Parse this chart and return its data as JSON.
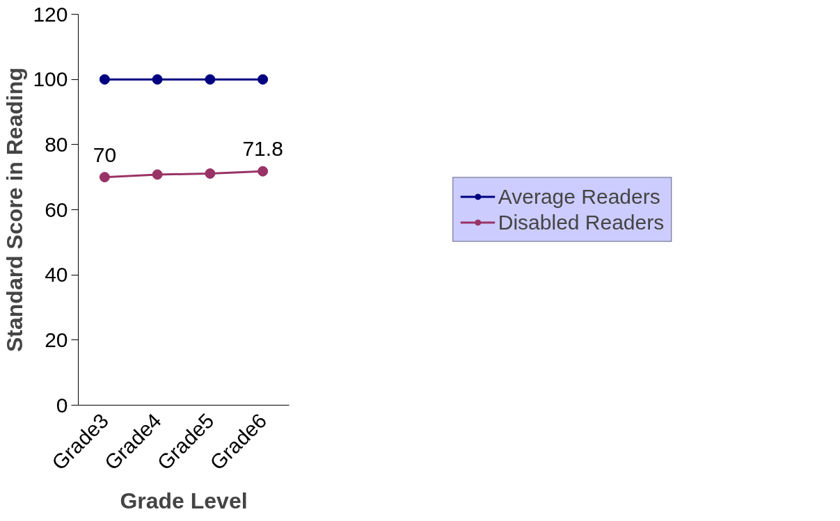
{
  "chart_data": {
    "type": "line",
    "xlabel": "Grade Level",
    "ylabel": "Standard Score in Reading",
    "categories": [
      "Grade3",
      "Grade4",
      "Grade5",
      "Grade6"
    ],
    "series": [
      {
        "name": "Average Readers",
        "color": "#000080",
        "values": [
          100,
          100,
          100,
          100
        ]
      },
      {
        "name": "Disabled Readers",
        "color": "#993366",
        "values": [
          70,
          70.8,
          71.1,
          71.8
        ],
        "value_labels": [
          "70",
          null,
          null,
          "71.8"
        ]
      }
    ],
    "ylim": [
      0,
      120
    ],
    "yticks": [
      0,
      20,
      40,
      60,
      80,
      100,
      120
    ],
    "grid": false,
    "legend": "right",
    "marker": "circle",
    "line_style": "solid"
  }
}
